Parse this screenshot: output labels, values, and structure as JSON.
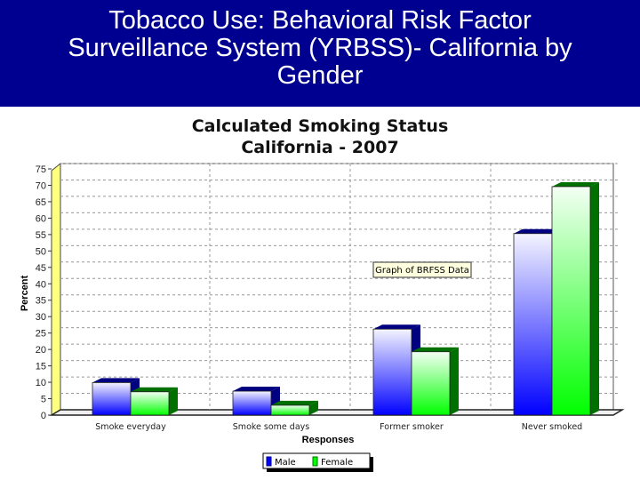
{
  "slide": {
    "title_lines": [
      "Tobacco Use: Behavioral Risk Factor",
      "Surveillance System (YRBSS)- California by",
      "Gender"
    ]
  },
  "chart_data": {
    "type": "bar",
    "title_lines": [
      "Calculated Smoking Status",
      "California - 2007"
    ],
    "xlabel": "Responses",
    "ylabel": "Percent",
    "ylim": [
      0,
      75
    ],
    "yticks": [
      0,
      5,
      10,
      15,
      20,
      25,
      30,
      35,
      40,
      45,
      50,
      55,
      60,
      65,
      70,
      75
    ],
    "grid": true,
    "categories": [
      "Smoke everyday",
      "Smoke some days",
      "Former smoker",
      "Never smoked"
    ],
    "series": [
      {
        "name": "Male",
        "values": [
          9.9,
          7.3,
          26.2,
          55.3
        ],
        "color": "#0000ff",
        "dark": "#000080"
      },
      {
        "name": "Female",
        "values": [
          7.1,
          3.0,
          19.3,
          69.6
        ],
        "color": "#00ff00",
        "dark": "#007000"
      }
    ],
    "legend_position": "bottom",
    "annotation": "Graph of BRFSS Data",
    "wall_color": "#ffff80"
  }
}
